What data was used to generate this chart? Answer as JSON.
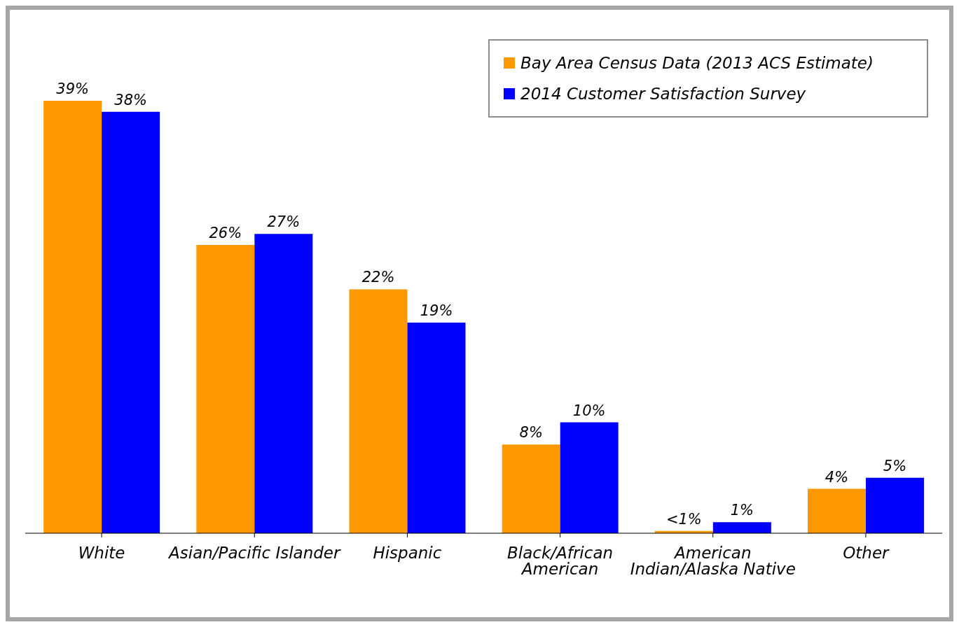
{
  "chart_data": {
    "type": "bar",
    "categories": [
      "White",
      "Asian/Pacific Islander",
      "Hispanic",
      "Black/African American",
      "American Indian/Alaska Native",
      "Other"
    ],
    "series": [
      {
        "name": "Bay Area Census Data (2013 ACS Estimate)",
        "color": "#ff9900",
        "values": [
          39,
          26,
          22,
          8,
          0.2,
          4
        ],
        "value_labels": [
          "39%",
          "26%",
          "22%",
          "8%",
          "<1%",
          "4%"
        ]
      },
      {
        "name": "2014 Customer Satisfaction Survey",
        "color": "#0000ff",
        "values": [
          38,
          27,
          19,
          10,
          1,
          5
        ],
        "value_labels": [
          "38%",
          "27%",
          "19%",
          "10%",
          "1%",
          "5%"
        ]
      }
    ],
    "legend": "top right",
    "grid": false
  }
}
